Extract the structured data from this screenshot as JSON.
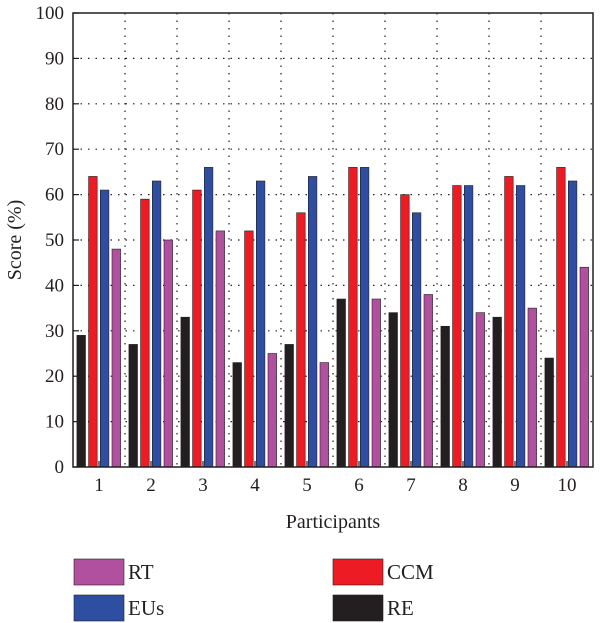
{
  "chart_data": {
    "type": "bar",
    "xlabel": "Participants",
    "ylabel": "Score (%)",
    "ylim": [
      0,
      100
    ],
    "yticks": [
      0,
      10,
      20,
      30,
      40,
      50,
      60,
      70,
      80,
      90,
      100
    ],
    "grid": true,
    "categories": [
      "1",
      "2",
      "3",
      "4",
      "5",
      "6",
      "7",
      "8",
      "9",
      "10"
    ],
    "legend_position": "bottom",
    "series": [
      {
        "name": "RE",
        "color": "#231f20",
        "values": [
          29,
          27,
          33,
          23,
          27,
          37,
          34,
          31,
          33,
          24
        ]
      },
      {
        "name": "CCM",
        "color": "#ed1c24",
        "values": [
          64,
          59,
          61,
          52,
          56,
          66,
          60,
          62,
          64,
          66
        ]
      },
      {
        "name": "EUs",
        "color": "#2e4ea1",
        "values": [
          61,
          63,
          66,
          63,
          64,
          66,
          56,
          62,
          62,
          63
        ]
      },
      {
        "name": "RT",
        "color": "#b0509e",
        "values": [
          48,
          50,
          52,
          25,
          23,
          37,
          38,
          34,
          35,
          44
        ]
      }
    ],
    "legend_order": [
      "RT",
      "CCM",
      "EUs",
      "RE"
    ]
  }
}
